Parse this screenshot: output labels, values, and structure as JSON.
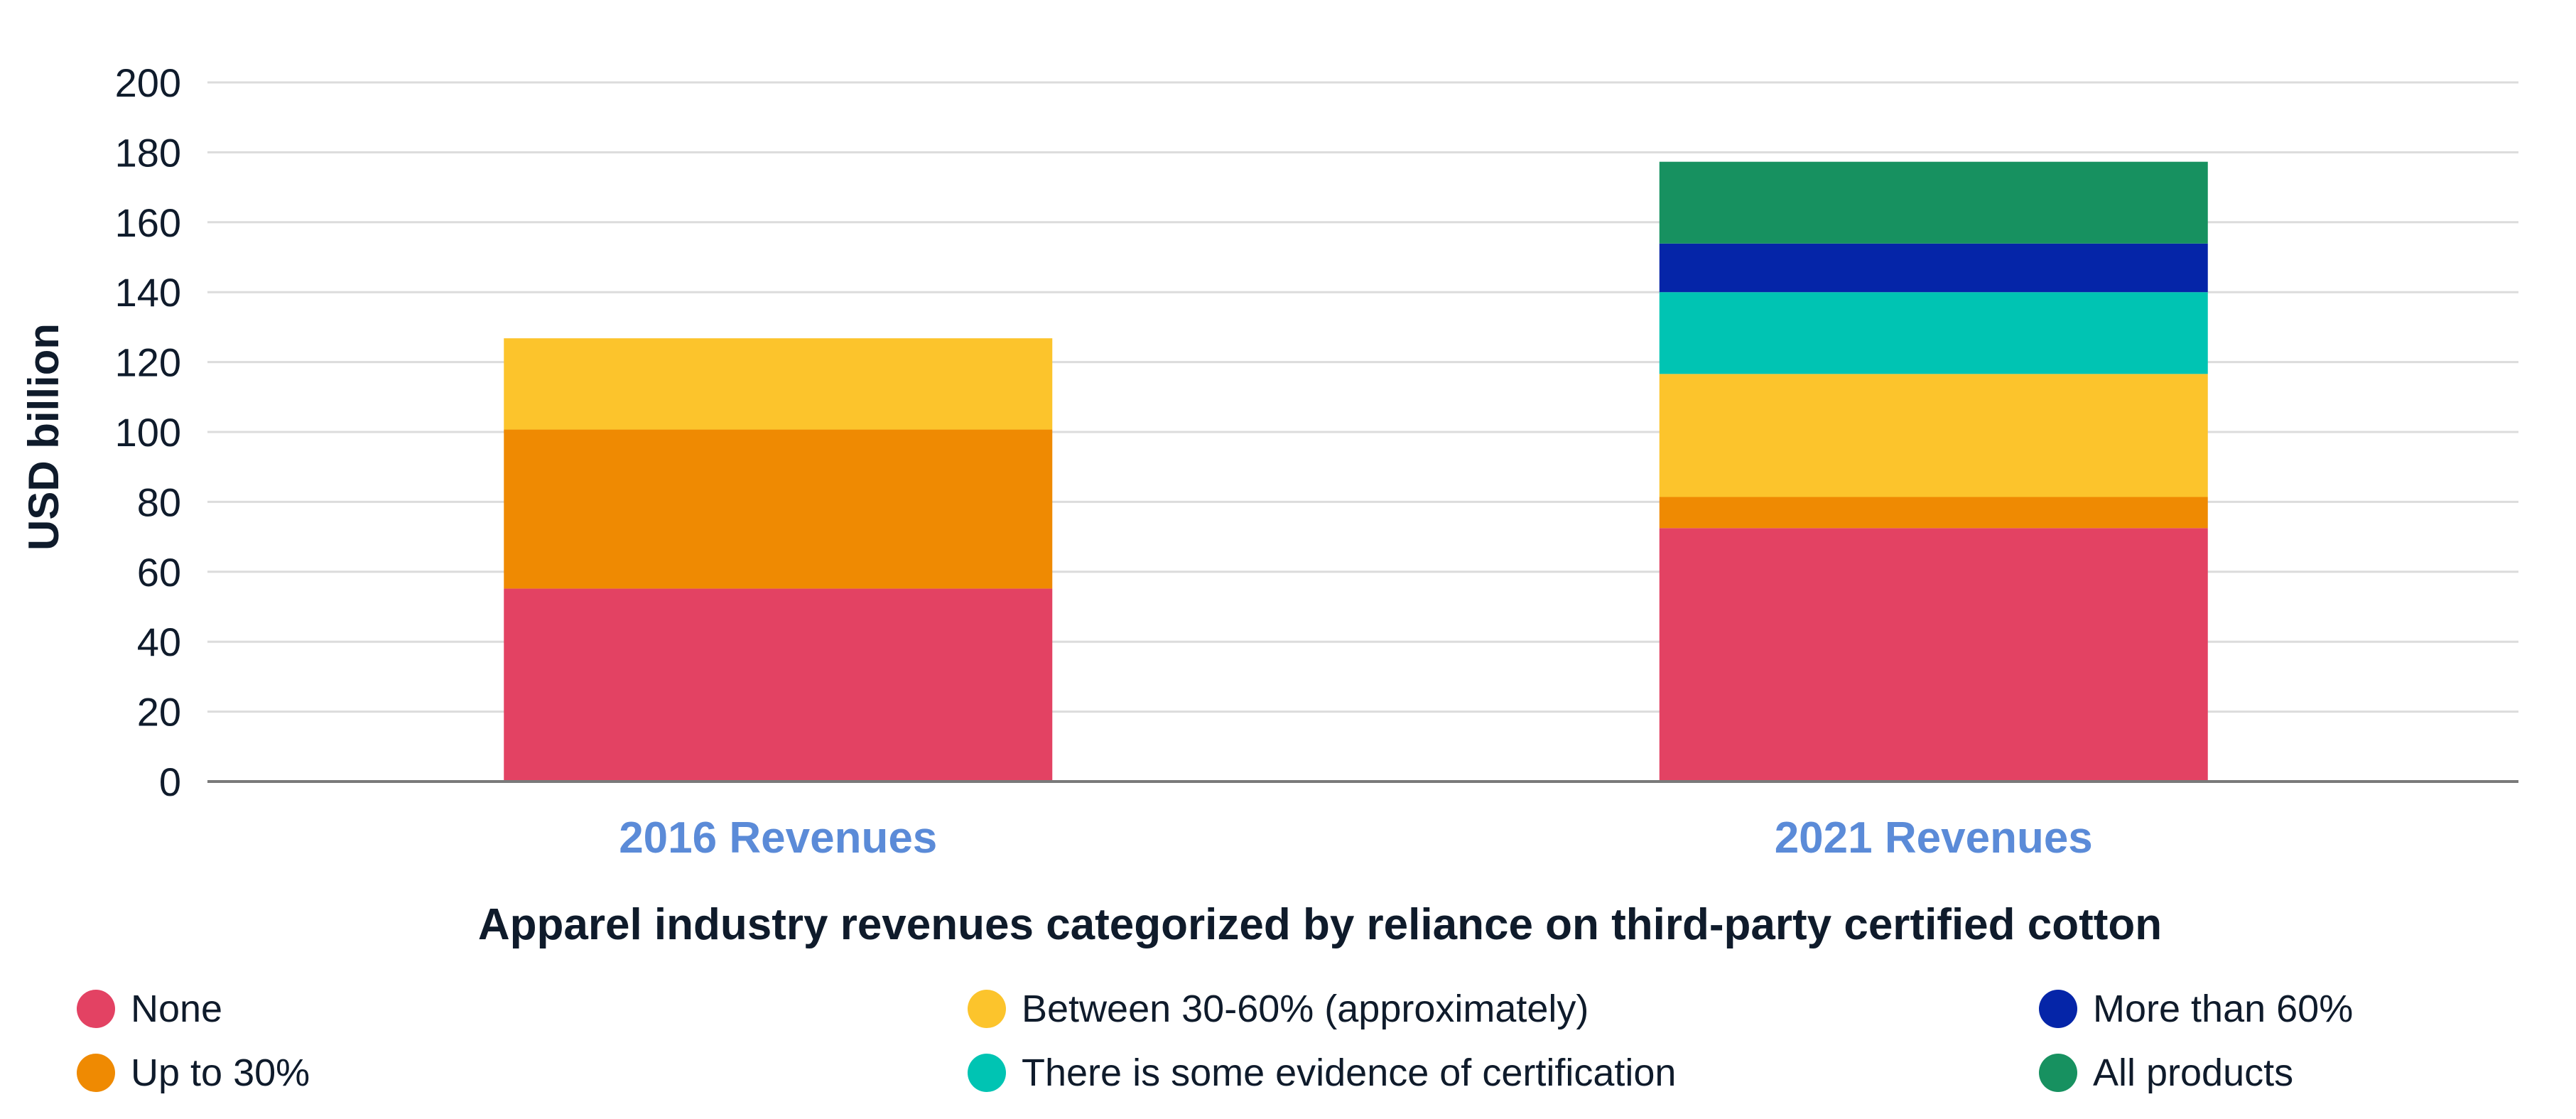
{
  "chart_data": {
    "type": "bar",
    "stacked": true,
    "title": "",
    "xlabel": "Apparel industry revenues categorized by reliance on third-party certified cotton",
    "ylabel": "USD billion",
    "ylim": [
      0,
      200
    ],
    "yticks": [
      0,
      20,
      40,
      60,
      80,
      100,
      120,
      140,
      160,
      180,
      200
    ],
    "grid": true,
    "legend_position": "bottom",
    "categories": [
      "2016 Revenues",
      "2021 Revenues"
    ],
    "category_label_color": "#5b8bd8",
    "series": [
      {
        "name": "None",
        "color": "#e34263",
        "values": [
          55.2,
          72.5
        ]
      },
      {
        "name": "Up to 30%",
        "color": "#ef8a02",
        "values": [
          45.5,
          8.9
        ]
      },
      {
        "name": "Between 30-60% (approximately)",
        "color": "#fcc42c",
        "values": [
          26.1,
          35.2
        ]
      },
      {
        "name": "There is some evidence of certification",
        "color": "#00c4b3",
        "values": [
          0,
          23.4
        ]
      },
      {
        "name": "More than 60%",
        "color": "#0525a8",
        "values": [
          0,
          13.9
        ]
      },
      {
        "name": "All products",
        "color": "#179160",
        "values": [
          0,
          23.4
        ]
      }
    ]
  },
  "legend": [
    {
      "label": "None",
      "color": "#e34263"
    },
    {
      "label": "Up to 30%",
      "color": "#ef8a02"
    },
    {
      "label": "Between 30-60% (approximately)",
      "color": "#fcc42c"
    },
    {
      "label": "There is some evidence of certification",
      "color": "#00c4b3"
    },
    {
      "label": "More than 60%",
      "color": "#0525a8"
    },
    {
      "label": "All products",
      "color": "#179160"
    }
  ]
}
